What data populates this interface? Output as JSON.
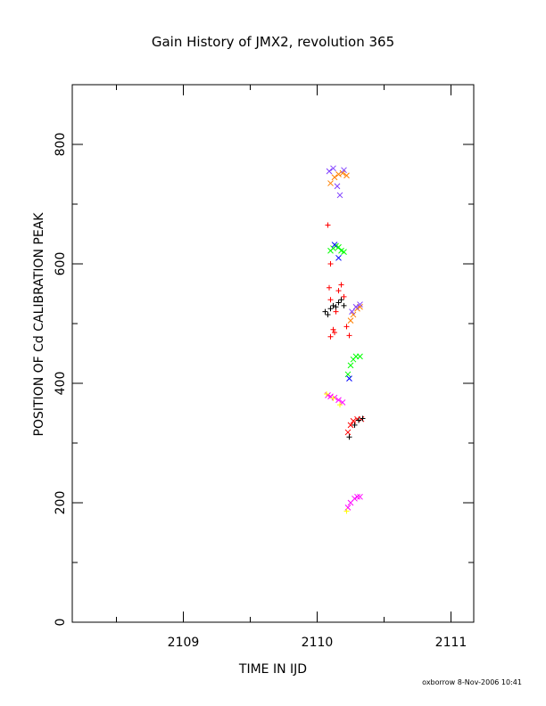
{
  "chart_data": {
    "type": "scatter",
    "title": "Gain History of JMX2, revolution 365",
    "xlabel": "TIME IN IJD",
    "ylabel": "POSITION OF Cd CALIBRATION PEAK",
    "xlim": [
      2108.17,
      2111.17
    ],
    "ylim": [
      0,
      900
    ],
    "x_ticks": [
      2109,
      2110,
      2111
    ],
    "y_ticks": [
      0,
      200,
      400,
      600,
      800
    ],
    "grid": false,
    "legend": "none",
    "series": [
      {
        "color": "#ff8000",
        "marker": "x",
        "points": [
          [
            2110.1,
            735
          ],
          [
            2110.13,
            745
          ],
          [
            2110.16,
            750
          ],
          [
            2110.19,
            752
          ],
          [
            2110.22,
            748
          ],
          [
            2110.25,
            505
          ],
          [
            2110.27,
            515
          ],
          [
            2110.3,
            525
          ],
          [
            2110.32,
            528
          ]
        ]
      },
      {
        "color": "#8040ff",
        "marker": "x",
        "points": [
          [
            2110.09,
            755
          ],
          [
            2110.12,
            760
          ],
          [
            2110.15,
            730
          ],
          [
            2110.17,
            715
          ],
          [
            2110.2,
            757
          ],
          [
            2110.26,
            520
          ],
          [
            2110.29,
            528
          ],
          [
            2110.32,
            532
          ]
        ]
      },
      {
        "color": "#ff0000",
        "marker": "+",
        "points": [
          [
            2110.08,
            665
          ],
          [
            2110.1,
            600
          ],
          [
            2110.09,
            560
          ],
          [
            2110.1,
            540
          ],
          [
            2110.12,
            490
          ],
          [
            2110.14,
            520
          ],
          [
            2110.16,
            555
          ],
          [
            2110.18,
            565
          ],
          [
            2110.2,
            545
          ],
          [
            2110.22,
            495
          ],
          [
            2110.24,
            480
          ],
          [
            2110.1,
            478
          ],
          [
            2110.13,
            485
          ]
        ]
      },
      {
        "color": "#000000",
        "marker": "+",
        "points": [
          [
            2110.06,
            520
          ],
          [
            2110.08,
            515
          ],
          [
            2110.1,
            525
          ],
          [
            2110.12,
            530
          ],
          [
            2110.14,
            528
          ],
          [
            2110.16,
            535
          ],
          [
            2110.18,
            540
          ],
          [
            2110.2,
            530
          ]
        ]
      },
      {
        "color": "#00ff00",
        "marker": "x",
        "points": [
          [
            2110.1,
            622
          ],
          [
            2110.12,
            626
          ],
          [
            2110.14,
            630
          ],
          [
            2110.16,
            628
          ],
          [
            2110.18,
            622
          ],
          [
            2110.2,
            620
          ],
          [
            2110.23,
            415
          ],
          [
            2110.25,
            430
          ],
          [
            2110.27,
            440
          ],
          [
            2110.29,
            445
          ],
          [
            2110.32,
            445
          ]
        ]
      },
      {
        "color": "#0000ff",
        "marker": "x",
        "points": [
          [
            2110.13,
            632
          ],
          [
            2110.16,
            610
          ],
          [
            2110.24,
            408
          ]
        ]
      },
      {
        "color": "#ff00ff",
        "marker": "x",
        "points": [
          [
            2110.08,
            380
          ],
          [
            2110.1,
            378
          ],
          [
            2110.13,
            376
          ],
          [
            2110.16,
            372
          ],
          [
            2110.19,
            368
          ],
          [
            2110.23,
            192
          ],
          [
            2110.25,
            200
          ],
          [
            2110.28,
            207
          ],
          [
            2110.3,
            210
          ],
          [
            2110.32,
            210
          ]
        ]
      },
      {
        "color": "#ffff00",
        "marker": "+",
        "points": [
          [
            2110.07,
            382
          ],
          [
            2110.12,
            375
          ],
          [
            2110.17,
            364
          ],
          [
            2110.22,
            186
          ]
        ]
      },
      {
        "color": "#ff0000",
        "marker": "x",
        "points": [
          [
            2110.23,
            318
          ],
          [
            2110.25,
            330
          ],
          [
            2110.27,
            337
          ],
          [
            2110.3,
            340
          ],
          [
            2110.33,
            340
          ]
        ]
      },
      {
        "color": "#000000",
        "marker": "+",
        "points": [
          [
            2110.24,
            310
          ],
          [
            2110.28,
            330
          ],
          [
            2110.31,
            338
          ],
          [
            2110.34,
            341
          ]
        ]
      }
    ]
  },
  "footer": {
    "text": "oxborrow   8-Nov-2006 10:41"
  }
}
